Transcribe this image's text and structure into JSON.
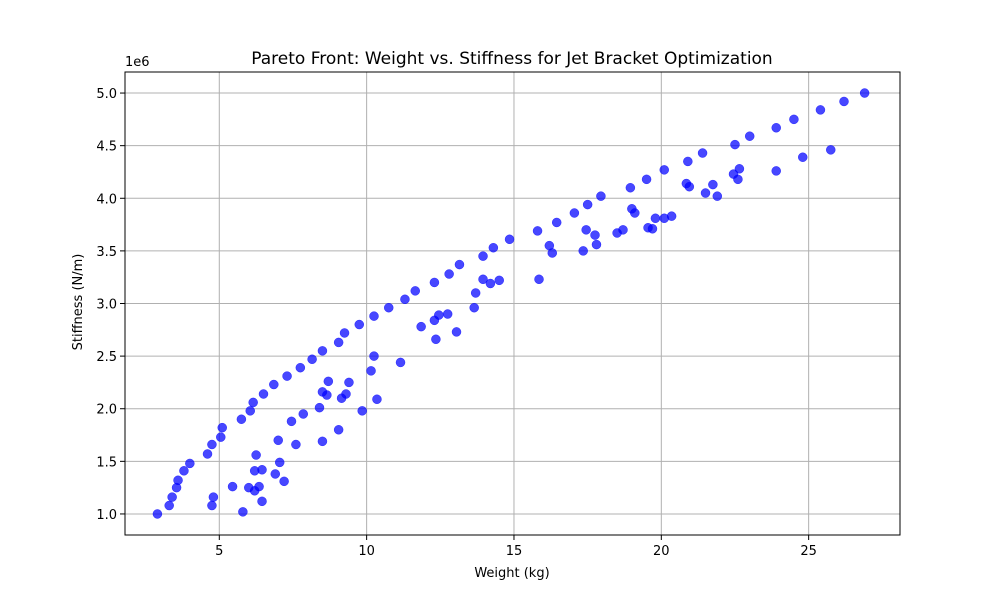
{
  "chart_data": {
    "type": "scatter",
    "title": "Pareto Front: Weight vs. Stiffness for Jet Bracket Optimization",
    "xlabel": "Weight (kg)",
    "ylabel": "Stiffness (N/m)",
    "y_offset_label": "1e6",
    "xlim": [
      1.8,
      28.1
    ],
    "ylim": [
      0.8,
      5.2
    ],
    "x_ticks": [
      5,
      10,
      15,
      20,
      25
    ],
    "x_tick_labels": [
      "5",
      "10",
      "15",
      "20",
      "25"
    ],
    "y_ticks": [
      1.0,
      1.5,
      2.0,
      2.5,
      3.0,
      3.5,
      4.0,
      4.5,
      5.0
    ],
    "y_tick_labels": [
      "1.0",
      "1.5",
      "2.0",
      "2.5",
      "3.0",
      "3.5",
      "4.0",
      "4.5",
      "5.0"
    ],
    "grid": true,
    "marker_color": "#0000ff",
    "points": [
      [
        2.9,
        1.0
      ],
      [
        3.3,
        1.08
      ],
      [
        3.4,
        1.16
      ],
      [
        3.55,
        1.25
      ],
      [
        3.6,
        1.32
      ],
      [
        3.8,
        1.41
      ],
      [
        4.0,
        1.48
      ],
      [
        4.6,
        1.57
      ],
      [
        4.75,
        1.66
      ],
      [
        5.05,
        1.73
      ],
      [
        5.1,
        1.82
      ],
      [
        5.75,
        1.9
      ],
      [
        6.05,
        1.98
      ],
      [
        6.15,
        2.06
      ],
      [
        6.5,
        2.14
      ],
      [
        6.85,
        2.23
      ],
      [
        7.3,
        2.31
      ],
      [
        7.75,
        2.39
      ],
      [
        8.15,
        2.47
      ],
      [
        8.5,
        2.55
      ],
      [
        9.05,
        2.63
      ],
      [
        9.25,
        2.72
      ],
      [
        9.75,
        2.8
      ],
      [
        10.25,
        2.88
      ],
      [
        10.75,
        2.96
      ],
      [
        11.3,
        3.04
      ],
      [
        11.65,
        3.12
      ],
      [
        12.3,
        3.2
      ],
      [
        12.8,
        3.28
      ],
      [
        13.15,
        3.37
      ],
      [
        13.95,
        3.45
      ],
      [
        14.3,
        3.53
      ],
      [
        14.85,
        3.61
      ],
      [
        15.8,
        3.69
      ],
      [
        16.45,
        3.77
      ],
      [
        17.05,
        3.86
      ],
      [
        17.5,
        3.94
      ],
      [
        17.95,
        4.02
      ],
      [
        18.95,
        4.1
      ],
      [
        19.5,
        4.18
      ],
      [
        20.1,
        4.27
      ],
      [
        20.9,
        4.35
      ],
      [
        21.4,
        4.43
      ],
      [
        22.5,
        4.51
      ],
      [
        23.0,
        4.59
      ],
      [
        23.9,
        4.67
      ],
      [
        24.5,
        4.75
      ],
      [
        25.4,
        4.84
      ],
      [
        26.2,
        4.92
      ],
      [
        26.9,
        5.0
      ],
      [
        4.75,
        1.08
      ],
      [
        4.8,
        1.16
      ],
      [
        5.45,
        1.26
      ],
      [
        5.8,
        1.02
      ],
      [
        6.0,
        1.25
      ],
      [
        6.2,
        1.22
      ],
      [
        6.2,
        1.41
      ],
      [
        6.25,
        1.56
      ],
      [
        6.35,
        1.26
      ],
      [
        6.45,
        1.12
      ],
      [
        6.45,
        1.42
      ],
      [
        6.9,
        1.38
      ],
      [
        7.0,
        1.7
      ],
      [
        7.05,
        1.49
      ],
      [
        7.2,
        1.31
      ],
      [
        7.45,
        1.88
      ],
      [
        7.6,
        1.66
      ],
      [
        7.85,
        1.95
      ],
      [
        8.4,
        2.01
      ],
      [
        8.5,
        2.16
      ],
      [
        8.5,
        1.69
      ],
      [
        8.65,
        2.13
      ],
      [
        8.7,
        2.26
      ],
      [
        9.05,
        1.8
      ],
      [
        9.15,
        2.1
      ],
      [
        9.3,
        2.14
      ],
      [
        9.4,
        2.25
      ],
      [
        9.85,
        1.98
      ],
      [
        10.15,
        2.36
      ],
      [
        10.25,
        2.5
      ],
      [
        10.35,
        2.09
      ],
      [
        11.15,
        2.44
      ],
      [
        11.85,
        2.78
      ],
      [
        12.3,
        2.84
      ],
      [
        12.35,
        2.66
      ],
      [
        12.45,
        2.89
      ],
      [
        12.75,
        2.9
      ],
      [
        13.05,
        2.73
      ],
      [
        13.65,
        2.96
      ],
      [
        13.7,
        3.1
      ],
      [
        13.95,
        3.23
      ],
      [
        14.2,
        3.19
      ],
      [
        14.5,
        3.22
      ],
      [
        15.85,
        3.23
      ],
      [
        16.2,
        3.55
      ],
      [
        16.3,
        3.48
      ],
      [
        17.35,
        3.5
      ],
      [
        17.45,
        3.7
      ],
      [
        17.75,
        3.65
      ],
      [
        17.8,
        3.56
      ],
      [
        18.5,
        3.67
      ],
      [
        18.7,
        3.7
      ],
      [
        19.0,
        3.9
      ],
      [
        19.1,
        3.86
      ],
      [
        19.55,
        3.72
      ],
      [
        19.7,
        3.71
      ],
      [
        19.8,
        3.81
      ],
      [
        20.1,
        3.81
      ],
      [
        20.35,
        3.83
      ],
      [
        20.85,
        4.14
      ],
      [
        20.95,
        4.11
      ],
      [
        21.5,
        4.05
      ],
      [
        21.75,
        4.13
      ],
      [
        21.9,
        4.02
      ],
      [
        22.45,
        4.23
      ],
      [
        22.6,
        4.18
      ],
      [
        22.65,
        4.28
      ],
      [
        23.9,
        4.26
      ],
      [
        24.8,
        4.39
      ],
      [
        25.75,
        4.46
      ]
    ]
  }
}
